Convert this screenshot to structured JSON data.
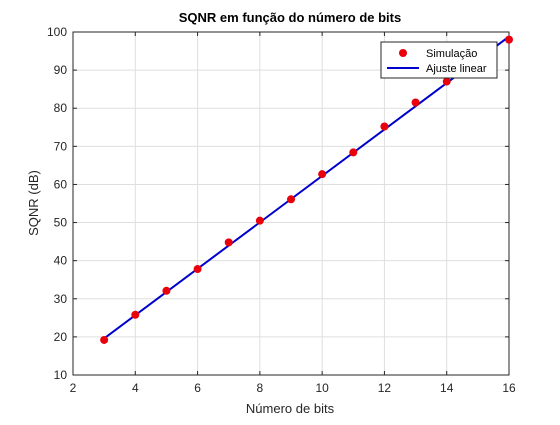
{
  "chart_data": {
    "type": "line",
    "title": "SQNR em função do número de bits",
    "xlabel": "Número de bits",
    "ylabel": "SQNR (dB)",
    "xlim": [
      2,
      16
    ],
    "ylim": [
      10,
      100
    ],
    "xticks": [
      2,
      4,
      6,
      8,
      10,
      12,
      14,
      16
    ],
    "yticks": [
      10,
      20,
      30,
      40,
      50,
      60,
      70,
      80,
      90,
      100
    ],
    "grid": true,
    "legend_position": "top-right",
    "series": [
      {
        "name": "Simulação",
        "kind": "markers",
        "color": "#e8000b",
        "x": [
          3,
          4,
          5,
          6,
          7,
          8,
          9,
          10,
          11,
          12,
          13,
          14,
          16
        ],
        "y": [
          19.2,
          25.8,
          32.1,
          37.8,
          44.8,
          50.5,
          56.1,
          62.7,
          68.4,
          75.2,
          81.5,
          87.0,
          98.0
        ]
      },
      {
        "name": "Ajuste linear",
        "kind": "line",
        "color": "#0000cc",
        "x": [
          3,
          16
        ],
        "y": [
          19.6,
          98.8
        ]
      }
    ]
  }
}
